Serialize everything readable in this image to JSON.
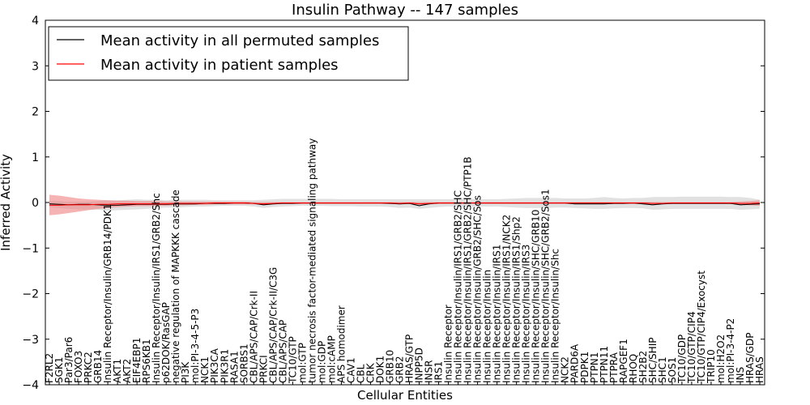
{
  "chart_data": {
    "type": "line",
    "title": "Insulin Pathway -- 147 samples",
    "xlabel": "Cellular Entities",
    "ylabel": "Inferred Activity",
    "ylim": [
      -4,
      4
    ],
    "yticks": [
      -4,
      -3,
      -2,
      -1,
      0,
      1,
      2,
      3,
      4
    ],
    "legend_position": "top-left",
    "grid": false,
    "categories": [
      "F2RL2",
      "SGK1",
      "Par3/Par6",
      "FOXO3",
      "PRKC2",
      "GRB14",
      "Insulin Receptor/Insulin/GRB14/PDK1",
      "AKT1",
      "AKT2",
      "EIF4EBP1",
      "RPS6KB1",
      "Insulin Receptor/Insulin/IRS1/GRB2/Shc",
      "p62DOK/RasGAP",
      "negative regulation of MAPKKK cascade",
      "PI3K",
      "mol:PI-3-4-5-P3",
      "NCK1",
      "PIK3CA",
      "PIK3R1",
      "RASA1",
      "SORBS1",
      "CBL/APS/CAP/Crk-II",
      "PRKCI",
      "CBL/APS/CAP/Crk-II/C3G",
      "CBL/APS/CAP",
      "TC10/GTP",
      "mol:GTP",
      "tumor necrosis factor-mediated signaling pathway",
      "mol:GDP",
      "mol:cAMP",
      "APS homodimer",
      "CAV1",
      "CBL",
      "CRK",
      "DOK1",
      "GRB10",
      "GRB2",
      "HRAS/GTP",
      "INPP5D",
      "INSR",
      "IRS1",
      "Insulin Receptor",
      "Insulin Receptor/Insulin/IRS1/GRB2/SHC",
      "Insulin Receptor/Insulin/IRS1/GRB2/SHC/PTP1B",
      "Insulin Receptor/Insulin/GRB2/SHC/Sos",
      "Insulin Receptor/Insulin",
      "Insulin Receptor/Insulin/IRS1",
      "Insulin Receptor/Insulin/IRS1/NCK2",
      "Insulin Receptor/Insulin/IRS1/Shp2",
      "Insulin Receptor/Insulin/IRS3",
      "Insulin Receptor/Insulin/SHC/GRB10",
      "Insulin Receptor/Insulin/SHC/GRB2/Sos1",
      "Insulin Receptor/Insulin/Shc",
      "NCK2",
      "PARD6A",
      "PDPK1",
      "PTPN1",
      "PTPN11",
      "PTPRA",
      "RAPGEF1",
      "RHOQ",
      "SH2B2",
      "SHC/SHIP",
      "SHC1",
      "SOS1",
      "TC10/GDP",
      "TC10/GTP/CIP4",
      "TC10/GTP/CIP4/Exocyst",
      "TRIP10",
      "mol:H2O2",
      "mol:PI-3-4-P2",
      "INS",
      "HRAS/GDP",
      "HRAS"
    ],
    "series": [
      {
        "name": "Mean activity in all permuted samples",
        "color": "#000000",
        "band_color": "#c8c8c8",
        "values": [
          -0.03,
          -0.04,
          -0.05,
          -0.04,
          -0.04,
          -0.05,
          -0.06,
          -0.06,
          -0.05,
          -0.04,
          -0.04,
          -0.04,
          -0.04,
          -0.03,
          -0.03,
          -0.03,
          -0.02,
          -0.02,
          -0.02,
          -0.01,
          -0.01,
          -0.02,
          -0.05,
          -0.03,
          -0.02,
          -0.02,
          -0.01,
          -0.01,
          -0.01,
          -0.01,
          -0.01,
          -0.01,
          -0.01,
          -0.01,
          -0.01,
          -0.02,
          -0.03,
          -0.02,
          -0.07,
          -0.03,
          -0.01,
          -0.01,
          -0.01,
          -0.01,
          -0.01,
          -0.01,
          -0.01,
          -0.01,
          -0.01,
          -0.01,
          -0.01,
          -0.01,
          -0.01,
          -0.01,
          -0.03,
          -0.03,
          -0.03,
          -0.03,
          -0.02,
          -0.02,
          -0.01,
          -0.03,
          -0.05,
          -0.03,
          -0.02,
          -0.02,
          -0.02,
          -0.02,
          -0.02,
          -0.02,
          -0.02,
          -0.05,
          -0.04,
          -0.03
        ],
        "band_upper": [
          0.03,
          0.03,
          0.02,
          0.02,
          0.02,
          0.03,
          0.05,
          0.05,
          0.06,
          0.07,
          0.06,
          0.06,
          0.05,
          0.06,
          0.06,
          0.06,
          0.06,
          0.05,
          0.05,
          0.05,
          0.05,
          0.05,
          0.06,
          0.07,
          0.08,
          0.08,
          0.08,
          0.08,
          0.08,
          0.08,
          0.07,
          0.07,
          0.07,
          0.07,
          0.07,
          0.07,
          0.07,
          0.07,
          0.07,
          0.07,
          0.07,
          0.07,
          0.07,
          0.07,
          0.07,
          0.07,
          0.07,
          0.08,
          0.09,
          0.1,
          0.1,
          0.1,
          0.1,
          0.09,
          0.09,
          0.09,
          0.1,
          0.12,
          0.1,
          0.09,
          0.1,
          0.1,
          0.12,
          0.12,
          0.12,
          0.13,
          0.13,
          0.13,
          0.13,
          0.13,
          0.12,
          0.12,
          0.1,
          0.06
        ],
        "band_lower": [
          -0.1,
          -0.12,
          -0.14,
          -0.15,
          -0.15,
          -0.16,
          -0.18,
          -0.17,
          -0.16,
          -0.15,
          -0.14,
          -0.12,
          -0.11,
          -0.11,
          -0.1,
          -0.09,
          -0.09,
          -0.08,
          -0.07,
          -0.07,
          -0.07,
          -0.09,
          -0.12,
          -0.1,
          -0.09,
          -0.08,
          -0.07,
          -0.07,
          -0.07,
          -0.08,
          -0.08,
          -0.08,
          -0.09,
          -0.09,
          -0.09,
          -0.1,
          -0.12,
          -0.11,
          -0.14,
          -0.12,
          -0.1,
          -0.09,
          -0.09,
          -0.09,
          -0.09,
          -0.09,
          -0.09,
          -0.1,
          -0.11,
          -0.12,
          -0.12,
          -0.12,
          -0.11,
          -0.11,
          -0.12,
          -0.13,
          -0.14,
          -0.14,
          -0.13,
          -0.12,
          -0.12,
          -0.13,
          -0.16,
          -0.15,
          -0.14,
          -0.14,
          -0.14,
          -0.14,
          -0.14,
          -0.14,
          -0.14,
          -0.16,
          -0.15,
          -0.14
        ]
      },
      {
        "name": "Mean activity in patient samples",
        "color": "#ff0000",
        "band_color": "#f08080",
        "values": [
          -0.06,
          -0.06,
          -0.05,
          -0.05,
          -0.05,
          -0.04,
          -0.04,
          -0.03,
          -0.03,
          -0.03,
          -0.03,
          -0.03,
          -0.03,
          -0.02,
          -0.02,
          -0.02,
          -0.02,
          -0.01,
          -0.01,
          -0.01,
          -0.01,
          -0.02,
          -0.03,
          -0.02,
          -0.01,
          -0.01,
          -0.01,
          -0.01,
          -0.01,
          -0.01,
          -0.01,
          -0.01,
          -0.01,
          -0.01,
          -0.01,
          -0.01,
          -0.02,
          -0.01,
          -0.03,
          -0.02,
          -0.01,
          -0.01,
          -0.01,
          -0.01,
          -0.01,
          -0.01,
          -0.01,
          -0.01,
          -0.01,
          -0.01,
          -0.01,
          -0.01,
          -0.01,
          -0.01,
          -0.01,
          -0.01,
          -0.01,
          -0.01,
          -0.01,
          -0.01,
          -0.01,
          -0.01,
          -0.02,
          -0.02,
          -0.01,
          -0.01,
          -0.01,
          -0.01,
          -0.01,
          -0.01,
          -0.01,
          -0.02,
          -0.02,
          -0.01
        ],
        "band_upper": [
          0.17,
          0.15,
          0.12,
          0.09,
          0.07,
          0.06,
          0.05,
          0.04,
          0.04,
          0.03,
          0.03,
          0.03,
          0.02,
          0.02,
          0.02,
          0.02,
          0.02,
          0.02,
          0.02,
          0.02,
          0.02,
          0.01,
          0.01,
          0.01,
          0.01,
          0.01,
          0.01,
          0.01,
          0.01,
          0.01,
          0.01,
          0.01,
          0.01,
          0.01,
          0.01,
          0.01,
          0.01,
          0.01,
          0.01,
          0.01,
          0.01,
          0.01,
          0.01,
          0.01,
          0.01,
          0.01,
          0.01,
          0.01,
          0.01,
          0.01,
          0.01,
          0.01,
          0.01,
          0.01,
          0.01,
          0.01,
          0.01,
          0.01,
          0.01,
          0.01,
          0.01,
          0.01,
          0.01,
          0.01,
          0.01,
          0.01,
          0.01,
          0.01,
          0.01,
          0.01,
          0.01,
          0.02,
          0.03,
          0.05
        ],
        "band_lower": [
          -0.28,
          -0.26,
          -0.23,
          -0.2,
          -0.17,
          -0.14,
          -0.12,
          -0.1,
          -0.09,
          -0.08,
          -0.08,
          -0.07,
          -0.07,
          -0.06,
          -0.06,
          -0.05,
          -0.05,
          -0.04,
          -0.04,
          -0.04,
          -0.04,
          -0.04,
          -0.05,
          -0.04,
          -0.03,
          -0.03,
          -0.03,
          -0.03,
          -0.03,
          -0.03,
          -0.03,
          -0.03,
          -0.03,
          -0.03,
          -0.03,
          -0.03,
          -0.04,
          -0.03,
          -0.05,
          -0.04,
          -0.03,
          -0.03,
          -0.03,
          -0.03,
          -0.03,
          -0.03,
          -0.03,
          -0.03,
          -0.03,
          -0.03,
          -0.03,
          -0.03,
          -0.03,
          -0.03,
          -0.03,
          -0.03,
          -0.03,
          -0.03,
          -0.03,
          -0.03,
          -0.03,
          -0.03,
          -0.04,
          -0.04,
          -0.03,
          -0.03,
          -0.03,
          -0.03,
          -0.03,
          -0.03,
          -0.03,
          -0.05,
          -0.06,
          -0.07
        ]
      }
    ]
  }
}
